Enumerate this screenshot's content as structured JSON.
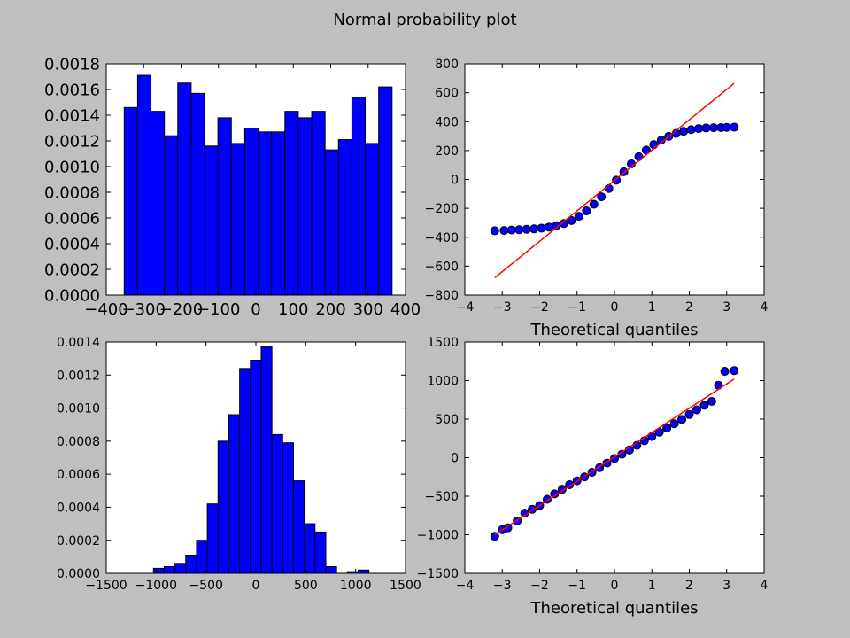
{
  "figure": {
    "title": "Normal probability plot",
    "background": "#bfbfbf"
  },
  "colors": {
    "bar_fill": "#0000ff",
    "marker_fill": "#0000ff",
    "fit_line": "#ff0000",
    "axes_bg": "#ffffff"
  },
  "chart_data": [
    {
      "id": "hist_top",
      "type": "bar",
      "title": "",
      "xlabel": "",
      "ylabel": "",
      "xlim": [
        -400,
        400
      ],
      "ylim": [
        0,
        0.0018
      ],
      "xticks": [
        -400,
        -300,
        -200,
        -100,
        0,
        100,
        200,
        300,
        400
      ],
      "xtick_labels": [
        "−400",
        "−300",
        "−200",
        "−100",
        "0",
        "100",
        "200",
        "300",
        "400"
      ],
      "yticks": [
        0,
        0.0002,
        0.0004,
        0.0006,
        0.0008,
        0.001,
        0.0012,
        0.0014,
        0.0016,
        0.0018
      ],
      "ytick_labels": [
        "0.0000",
        "0.0002",
        "0.0004",
        "0.0006",
        "0.0008",
        "0.0010",
        "0.0012",
        "0.0014",
        "0.0016",
        "0.0018"
      ],
      "bin_edges": [
        -352,
        -316.2,
        -280.4,
        -244.6,
        -208.8,
        -173,
        -137.2,
        -101.4,
        -65.6,
        -29.8,
        6,
        41.8,
        77.6,
        113.4,
        149.2,
        185,
        220.8,
        256.6,
        292.4,
        328.2,
        364
      ],
      "values": [
        0.00146,
        0.00171,
        0.00143,
        0.00124,
        0.00165,
        0.00157,
        0.00116,
        0.00138,
        0.00118,
        0.0013,
        0.00127,
        0.00127,
        0.00143,
        0.00138,
        0.00143,
        0.00113,
        0.00121,
        0.00154,
        0.00118,
        0.00162
      ]
    },
    {
      "id": "qq_top",
      "type": "scatter",
      "title": "",
      "xlabel": "Theoretical quantiles",
      "ylabel": "",
      "xlim": [
        -4,
        4
      ],
      "ylim": [
        -800,
        800
      ],
      "xticks": [
        -4,
        -3,
        -2,
        -1,
        0,
        1,
        2,
        3,
        4
      ],
      "xtick_labels": [
        "−4",
        "−3",
        "−2",
        "−1",
        "0",
        "1",
        "2",
        "3",
        "4"
      ],
      "yticks": [
        -800,
        -600,
        -400,
        -200,
        0,
        200,
        400,
        600,
        800
      ],
      "ytick_labels": [
        "−800",
        "−600",
        "−400",
        "−200",
        "0",
        "200",
        "400",
        "600",
        "800"
      ],
      "x": [
        -3.2,
        -2.95,
        -2.75,
        -2.55,
        -2.35,
        -2.15,
        -1.95,
        -1.75,
        -1.55,
        -1.35,
        -1.15,
        -0.95,
        -0.75,
        -0.55,
        -0.35,
        -0.15,
        0.05,
        0.25,
        0.45,
        0.65,
        0.85,
        1.05,
        1.25,
        1.45,
        1.65,
        1.85,
        2.05,
        2.25,
        2.45,
        2.65,
        2.85,
        3.0,
        3.2
      ],
      "y": [
        -355,
        -353,
        -350,
        -348,
        -345,
        -342,
        -337,
        -330,
        -320,
        -305,
        -284,
        -255,
        -218,
        -172,
        -120,
        -63,
        -5,
        53,
        108,
        158,
        203,
        241,
        272,
        298,
        318,
        333,
        344,
        352,
        356,
        358,
        359,
        360,
        362
      ],
      "fit_line": {
        "x": [
          -3.2,
          3.2
        ],
        "y": [
          -680,
          665
        ]
      }
    },
    {
      "id": "hist_bottom",
      "type": "bar",
      "title": "",
      "xlabel": "",
      "ylabel": "",
      "xlim": [
        -1500,
        1500
      ],
      "ylim": [
        0,
        0.0014
      ],
      "xticks": [
        -1500,
        -1000,
        -500,
        0,
        500,
        1000,
        1500
      ],
      "xtick_labels": [
        "−1500",
        "−1000",
        "−500",
        "0",
        "500",
        "1000",
        "1500"
      ],
      "yticks": [
        0,
        0.0002,
        0.0004,
        0.0006,
        0.0008,
        0.001,
        0.0012,
        0.0014
      ],
      "ytick_labels": [
        "0.0000",
        "0.0002",
        "0.0004",
        "0.0006",
        "0.0008",
        "0.0010",
        "0.0012",
        "0.0014"
      ],
      "bin_edges": [
        -1027,
        -919,
        -811,
        -703,
        -595,
        -487,
        -379,
        -271,
        -163,
        -55,
        53,
        161,
        269,
        377,
        485,
        593,
        701,
        809,
        917,
        1025,
        1133
      ],
      "values": [
        3e-05,
        4e-05,
        6e-05,
        0.00011,
        0.0002,
        0.00042,
        0.0008,
        0.00096,
        0.00124,
        0.00129,
        0.00137,
        0.00084,
        0.00079,
        0.00056,
        0.0003,
        0.00025,
        4e-05,
        0,
        1e-05,
        2e-05
      ]
    },
    {
      "id": "qq_bottom",
      "type": "scatter",
      "title": "",
      "xlabel": "Theoretical quantiles",
      "ylabel": "",
      "xlim": [
        -4,
        4
      ],
      "ylim": [
        -1500,
        1500
      ],
      "xticks": [
        -4,
        -3,
        -2,
        -1,
        0,
        1,
        2,
        3,
        4
      ],
      "xtick_labels": [
        "−4",
        "−3",
        "−2",
        "−1",
        "0",
        "1",
        "2",
        "3",
        "4"
      ],
      "yticks": [
        -1500,
        -1000,
        -500,
        0,
        500,
        1000,
        1500
      ],
      "ytick_labels": [
        "−1500",
        "−1000",
        "−500",
        "0",
        "500",
        "1000",
        "1500"
      ],
      "x": [
        -3.2,
        -3.0,
        -2.85,
        -2.6,
        -2.4,
        -2.2,
        -2.0,
        -1.8,
        -1.6,
        -1.4,
        -1.2,
        -1.0,
        -0.8,
        -0.6,
        -0.4,
        -0.2,
        0.0,
        0.2,
        0.4,
        0.6,
        0.8,
        1.0,
        1.2,
        1.4,
        1.6,
        1.8,
        2.0,
        2.2,
        2.4,
        2.6,
        2.78,
        2.95,
        3.2
      ],
      "y": [
        -1020,
        -935,
        -910,
        -820,
        -720,
        -670,
        -620,
        -540,
        -470,
        -410,
        -350,
        -300,
        -250,
        -190,
        -130,
        -70,
        -10,
        45,
        100,
        160,
        220,
        275,
        330,
        385,
        440,
        495,
        560,
        620,
        680,
        730,
        940,
        1120,
        1130
      ],
      "fit_line": {
        "x": [
          -3.2,
          3.2
        ],
        "y": [
          -1000,
          1020
        ]
      }
    }
  ]
}
